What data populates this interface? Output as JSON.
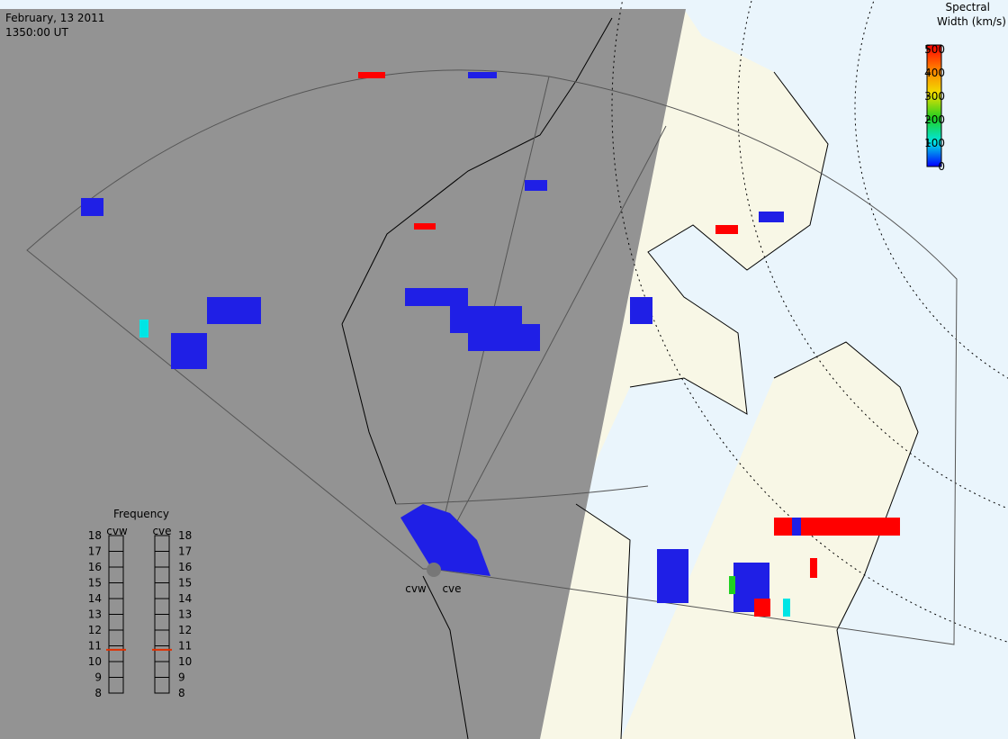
{
  "header": {
    "date": "February, 13 2011",
    "time": "1350:00 UT"
  },
  "colorbar": {
    "title": [
      "Spectral",
      "Width (km/s)"
    ],
    "range": [
      0,
      500
    ],
    "ticks": [
      0,
      100,
      200,
      300,
      400,
      500
    ]
  },
  "frequency": {
    "title": "Frequency",
    "range": [
      8,
      18
    ],
    "ticks": [
      8,
      9,
      10,
      11,
      12,
      13,
      14,
      15,
      16,
      17,
      18
    ],
    "radars": [
      {
        "name": "cvw",
        "value": 10.75
      },
      {
        "name": "cve",
        "value": 10.75
      }
    ]
  },
  "stations": [
    "cvw",
    "cve"
  ]
}
